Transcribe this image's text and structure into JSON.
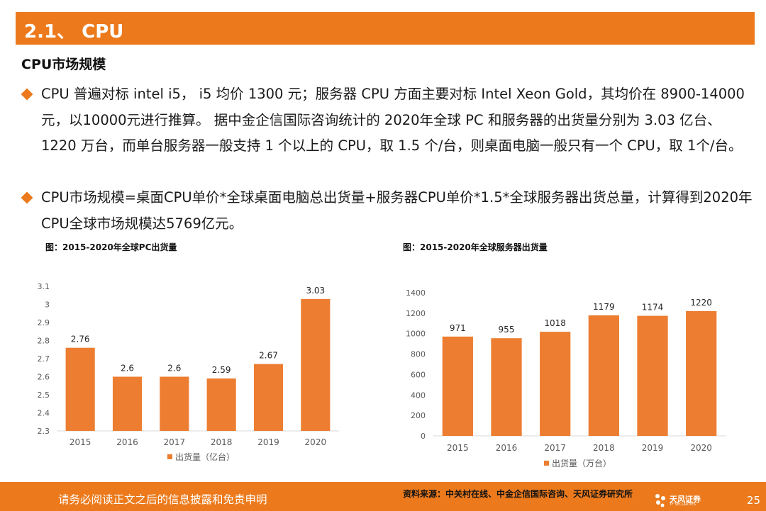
{
  "header": {
    "title": "2.1、 CPU"
  },
  "section": {
    "subtitle": "CPU市场规模"
  },
  "bullets": [
    "CPU 普遍对标 intel i5， i5 均价 1300 元；服务器 CPU 方面主要对标 Intel Xeon Gold，其均价在 8900-14000 元，以10000元进行推算。 据中金企信国际咨询统计的 2020年全球 PC 和服务器的出货量分别为 3.03 亿台、1220 万台，而单台服务器一般支持 1 个以上的 CPU，取 1.5 个/台，则桌面电脑一般只有一个 CPU，取 1个/台。",
    "CPU市场规模=桌面CPU单价*全球桌面电脑总出货量+服务器CPU单价*1.5*全球服务器出货总量，计算得到2020年CPU全球市场规模达5769亿元。"
  ],
  "colors": {
    "accent": "#ec7a1c",
    "bar": "#ed7d31"
  },
  "chart_data": [
    {
      "type": "bar",
      "title": "图：2015-2020年全球PC出货量",
      "categories": [
        "2015",
        "2016",
        "2017",
        "2018",
        "2019",
        "2020"
      ],
      "values": [
        2.76,
        2.6,
        2.6,
        2.59,
        2.67,
        3.03
      ],
      "value_labels": [
        "2.76",
        "2.6",
        "2.6",
        "2.59",
        "2.67",
        "3.03"
      ],
      "ylim": [
        2.3,
        3.1
      ],
      "yticks": [
        "2.3",
        "2.4",
        "2.5",
        "2.6",
        "2.7",
        "2.8",
        "2.9",
        "3",
        "3.1"
      ],
      "legend": "出货量（亿台）",
      "grid": false
    },
    {
      "type": "bar",
      "title": "图：2015-2020年全球服务器出货量",
      "categories": [
        "2015",
        "2016",
        "2017",
        "2018",
        "2019",
        "2020"
      ],
      "values": [
        971,
        955,
        1018,
        1179,
        1174,
        1220
      ],
      "value_labels": [
        "971",
        "955",
        "1018",
        "1179",
        "1174",
        "1220"
      ],
      "ylim": [
        0,
        1400
      ],
      "yticks": [
        "0",
        "200",
        "400",
        "600",
        "800",
        "1000",
        "1200",
        "1400"
      ],
      "legend": "出货量（万台）",
      "grid": false
    }
  ],
  "footer": {
    "disclaimer": "请务必阅读正文之后的信息披露和免责申明",
    "source": "资料来源：中关村在线、中金企信国际咨询、天风证券研究所",
    "logo_text": "天风证券",
    "logo_sub": "TF SECURITIES",
    "page_number": "25"
  }
}
